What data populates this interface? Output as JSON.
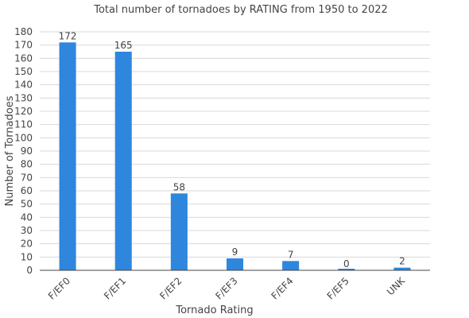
{
  "chart_data": {
    "type": "bar",
    "title": "Total number of tornadoes by RATING from 1950 to 2022",
    "xlabel": "Tornado Rating",
    "ylabel": "Number of Tornadoes",
    "categories": [
      "F/EF0",
      "F/EF1",
      "F/EF2",
      "F/EF3",
      "F/EF4",
      "F/EF5",
      "UNK"
    ],
    "values": [
      172,
      165,
      58,
      9,
      7,
      0,
      2
    ],
    "ylim": [
      0,
      180
    ],
    "yticks": [
      0,
      10,
      20,
      30,
      40,
      50,
      60,
      70,
      80,
      90,
      100,
      110,
      120,
      130,
      140,
      150,
      160,
      170,
      180
    ],
    "grid": true,
    "legend": "none",
    "bar_color": "#2f86dd"
  }
}
